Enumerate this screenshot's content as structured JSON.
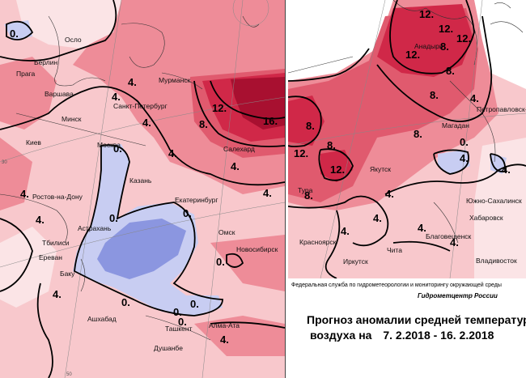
{
  "left_map": {
    "cities": [
      {
        "name": "Осло"
      },
      {
        "name": "Берлин"
      },
      {
        "name": "Прага"
      },
      {
        "name": "Варшава"
      },
      {
        "name": "Мурманск"
      },
      {
        "name": "Санкт-Петербург"
      },
      {
        "name": "Минск"
      },
      {
        "name": "Киев"
      },
      {
        "name": "Москва"
      },
      {
        "name": "Салехард"
      },
      {
        "name": "Казань"
      },
      {
        "name": "Ростов-на-Дону"
      },
      {
        "name": "Екатеринбург"
      },
      {
        "name": "Астрахань"
      },
      {
        "name": "Омск"
      },
      {
        "name": "Тбилиси"
      },
      {
        "name": "Новосибирск"
      },
      {
        "name": "Ереван"
      },
      {
        "name": "Баку"
      },
      {
        "name": "Ашхабад"
      },
      {
        "name": "Ташкент"
      },
      {
        "name": "Алма-Ата"
      },
      {
        "name": "Душанбе"
      }
    ],
    "isoline_labels": [
      "0.",
      "4.",
      "4.",
      "4.",
      "12.",
      "8.",
      "16.",
      "4.",
      "4.",
      "0.",
      "4.",
      "0.",
      "4.",
      "0.",
      "0.",
      "0.",
      "4.",
      "0.",
      "4.",
      "0.",
      "4.",
      "0."
    ],
    "grid_labels": [
      "30",
      "50"
    ]
  },
  "right_map": {
    "cities": [
      {
        "name": "Анадырь"
      },
      {
        "name": "Петропавловск-Камчатский"
      },
      {
        "name": "Магадан"
      },
      {
        "name": "Якутск"
      },
      {
        "name": "Тура"
      },
      {
        "name": "Южно-Сахалинск"
      },
      {
        "name": "Хабаровск"
      },
      {
        "name": "Благовещенск"
      },
      {
        "name": "Красноярск"
      },
      {
        "name": "Чита"
      },
      {
        "name": "Иркутск"
      },
      {
        "name": "Владивосток"
      }
    ],
    "isoline_labels": [
      "12.",
      "12.",
      "12.",
      "12.",
      "8.",
      "8.",
      "8.",
      "12.",
      "8.",
      "12.",
      "8.",
      "8.",
      "4.",
      "8.",
      "4.",
      "0.",
      "4.",
      "4.",
      "4.",
      "4.",
      "4.",
      "4."
    ]
  },
  "credits": {
    "agency": "Федеральная служба по гидрометеорологии и мониторингу окружающей среды",
    "center": "Гидрометцентр России"
  },
  "title": {
    "line1": "Прогноз аномалии средней температуры",
    "line2_prefix": "воздуха на",
    "line2_period": "7. 2.2018 - 16. 2.2018"
  },
  "colors": {
    "anomaly_0_4": "#f8c8cc",
    "anomaly_4_8": "#ee8c98",
    "anomaly_8_12": "#e05a6e",
    "anomaly_12_16": "#d02848",
    "anomaly_16_plus": "#a81030",
    "anomaly_neg_0_4": "#c8cdf2",
    "anomaly_neg_4_8": "#8b96e0",
    "anomaly_near_zero": "#fbe4e6"
  }
}
